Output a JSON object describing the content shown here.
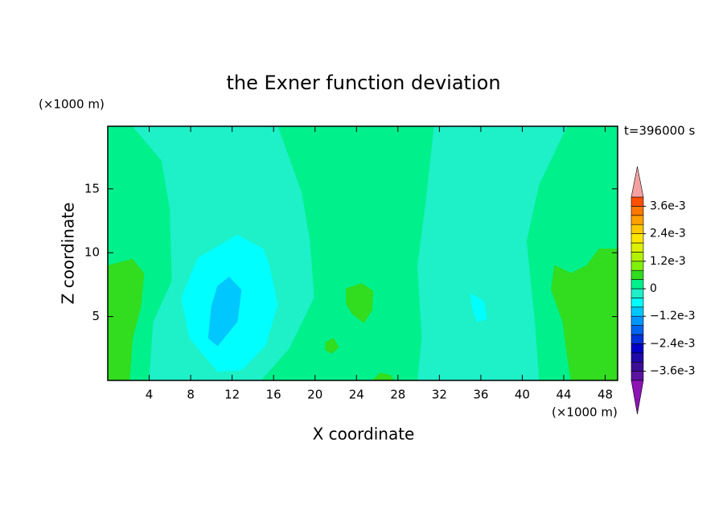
{
  "chart_data": {
    "type": "contour",
    "title": "the Exner function deviation",
    "xlabel": "X coordinate",
    "ylabel": "Z coordinate",
    "x_unit_label": "(×1000 m)",
    "y_unit_label": "(×1000 m)",
    "time_label": "t=396000 s",
    "xlim": [
      0,
      49.2
    ],
    "ylim": [
      0,
      19.9
    ],
    "xticks": [
      4,
      8,
      12,
      16,
      20,
      24,
      28,
      32,
      36,
      40,
      44,
      48
    ],
    "yticks": [
      5,
      10,
      15
    ],
    "levels": [
      -0.004,
      -0.0036,
      -0.0032,
      -0.0028,
      -0.0024,
      -0.002,
      -0.0016,
      -0.0012,
      -0.0008,
      -0.0004,
      0,
      0.0004,
      0.0008,
      0.0012,
      0.0016,
      0.002,
      0.0024,
      0.0028,
      0.0032,
      0.0036,
      0.004
    ],
    "colors": [
      "#5a14a0",
      "#3c0f96",
      "#1e0aaa",
      "#0000c8",
      "#0032dc",
      "#0064f0",
      "#0096ff",
      "#00c8ff",
      "#00ffff",
      "#1ef0c8",
      "#00f08c",
      "#32dc1e",
      "#82f00a",
      "#b4f000",
      "#dcf000",
      "#ffe600",
      "#ffc800",
      "#ffa000",
      "#ff7800",
      "#ff5000",
      "#f01e1e"
    ],
    "over_color": "#f5a0a0",
    "under_color": "#8c14b4",
    "colorbar_ticks": [
      {
        "value": 0.0036,
        "label": "3.6e-3"
      },
      {
        "value": 0.0024,
        "label": "2.4e-3"
      },
      {
        "value": 0.0012,
        "label": "1.2e-3"
      },
      0,
      {
        "value": -0.0012,
        "label": "−1.2e-3"
      },
      {
        "value": -0.0024,
        "label": "−2.4e-3"
      },
      {
        "value": -0.0036,
        "label": "−3.6e-3"
      }
    ],
    "regions": [
      {
        "level": 0,
        "x": [
          0,
          0,
          49.2,
          49.2
        ],
        "z": [
          0,
          19.9,
          19.9,
          0
        ]
      },
      {
        "level": -0.0004,
        "x": [
          2.4,
          5.2,
          6.0,
          6.2,
          4.4,
          4.0,
          14.8,
          17.5,
          19.9,
          19.5,
          18.7,
          16.4
        ],
        "z": [
          19.9,
          17.2,
          13.4,
          7.8,
          4.6,
          0,
          0,
          2.5,
          6.5,
          10.9,
          14.7,
          19.9
        ]
      },
      {
        "level": -0.0004,
        "x": [
          31.5,
          30.7,
          29.9,
          30.3,
          29.9,
          41.6,
          41.2,
          40.4,
          41.6,
          44.3
        ],
        "z": [
          19.9,
          14.0,
          9.0,
          3.3,
          0,
          0,
          4.6,
          10.9,
          15.3,
          19.9
        ]
      },
      {
        "level": -0.0008,
        "x": [
          12.5,
          15.0,
          15.6,
          16.4,
          15.2,
          12.9,
          10.6,
          7.9,
          7.1,
          8.7
        ],
        "z": [
          11.4,
          10.3,
          9.0,
          5.9,
          2.7,
          0.8,
          0.7,
          3.3,
          6.5,
          9.6
        ]
      },
      {
        "level": -0.0008,
        "x": [
          35.0,
          36.3,
          36.6,
          35.6,
          35.2
        ],
        "z": [
          6.8,
          6.2,
          4.8,
          4.6,
          5.6
        ]
      },
      {
        "level": -0.0012,
        "x": [
          11.7,
          12.9,
          12.5,
          10.6,
          9.7,
          10.0,
          10.6
        ],
        "z": [
          8.1,
          7.1,
          4.6,
          2.7,
          3.3,
          5.8,
          7.4
        ]
      },
      {
        "level": 0.0004,
        "x": [
          0,
          2.4,
          3.5,
          3.2,
          2.4,
          2.1,
          0
        ],
        "z": [
          9.0,
          9.5,
          8.4,
          5.8,
          3.3,
          0,
          0
        ]
      },
      {
        "level": 0.0004,
        "x": [
          49.2,
          49.2,
          47.4,
          46.2,
          44.7,
          43.1,
          42.8,
          43.9,
          44.3,
          44.7
        ],
        "z": [
          0,
          10.3,
          10.3,
          9.0,
          8.4,
          9.0,
          7.1,
          4.6,
          2.1,
          0
        ]
      },
      {
        "level": 0.0004,
        "x": [
          23.0,
          24.5,
          25.6,
          25.5,
          24.7,
          23.6,
          23.0
        ],
        "z": [
          7.2,
          7.6,
          7.0,
          5.5,
          4.5,
          5.2,
          6.0
        ]
      },
      {
        "level": 0.0004,
        "x": [
          21.0,
          21.8,
          22.3,
          21.6,
          21.0
        ],
        "z": [
          3.0,
          3.3,
          2.6,
          2.1,
          2.4
        ]
      },
      {
        "level": 0.0004,
        "x": [
          25.5,
          26.3,
          27.3,
          27.6
        ],
        "z": [
          0,
          0.6,
          0.4,
          0
        ]
      }
    ]
  }
}
